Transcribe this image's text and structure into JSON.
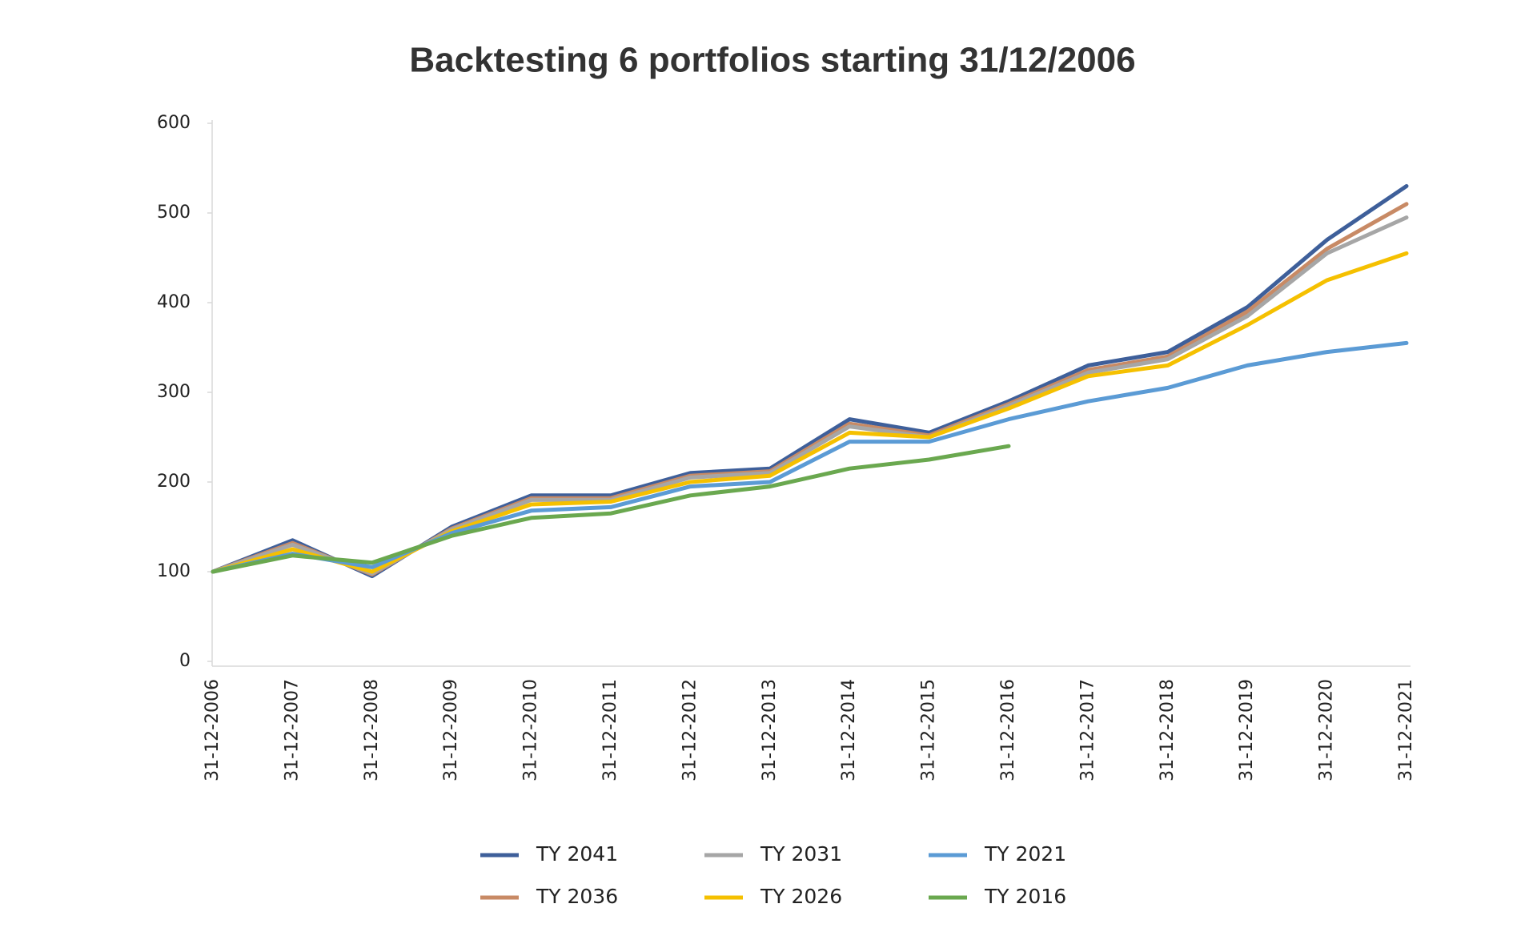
{
  "chart_data": {
    "type": "line",
    "title": "Backtesting 6 portfolios starting 31/12/2006",
    "categories": [
      "31-12-2006",
      "31-12-2007",
      "31-12-2008",
      "31-12-2009",
      "31-12-2010",
      "31-12-2011",
      "31-12-2012",
      "31-12-2013",
      "31-12-2014",
      "31-12-2015",
      "31-12-2016",
      "31-12-2017",
      "31-12-2018",
      "31-12-2019",
      "31-12-2020",
      "31-12-2021"
    ],
    "series": [
      {
        "name": "TY 2041",
        "color": "#3e5f9a",
        "values": [
          100,
          135,
          95,
          150,
          185,
          185,
          210,
          215,
          270,
          255,
          290,
          330,
          345,
          395,
          470,
          530
        ]
      },
      {
        "name": "TY 2036",
        "color": "#c88a65",
        "values": [
          100,
          132,
          97,
          148,
          182,
          182,
          207,
          212,
          265,
          252,
          287,
          325,
          340,
          390,
          460,
          510
        ]
      },
      {
        "name": "TY 2031",
        "color": "#a6a6a6",
        "values": [
          100,
          130,
          98,
          147,
          180,
          180,
          205,
          210,
          262,
          250,
          285,
          322,
          337,
          385,
          455,
          495
        ]
      },
      {
        "name": "TY 2026",
        "color": "#f5c000",
        "values": [
          100,
          125,
          100,
          145,
          175,
          178,
          200,
          207,
          255,
          250,
          282,
          318,
          330,
          375,
          425,
          455
        ]
      },
      {
        "name": "TY 2021",
        "color": "#5b9bd5",
        "values": [
          100,
          120,
          105,
          143,
          168,
          172,
          195,
          200,
          245,
          245,
          270,
          290,
          305,
          330,
          345,
          355
        ]
      },
      {
        "name": "TY 2016",
        "color": "#6aa84f",
        "values": [
          100,
          118,
          110,
          140,
          160,
          165,
          185,
          195,
          215,
          225,
          240,
          null,
          null,
          null,
          null,
          null
        ]
      }
    ],
    "ylim": [
      0,
      600
    ],
    "yticks": [
      0,
      100,
      200,
      300,
      400,
      500,
      600
    ]
  }
}
